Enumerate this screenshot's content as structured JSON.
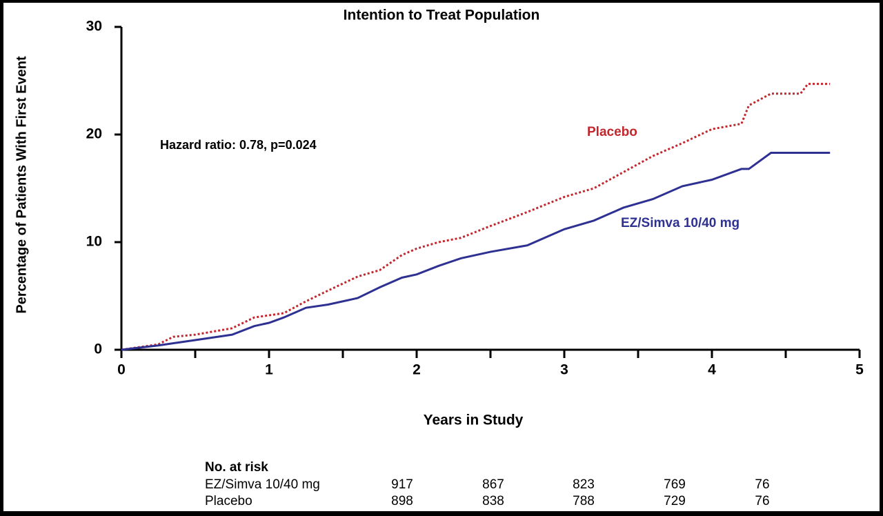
{
  "chart_data": {
    "type": "line",
    "title": "Intention to Treat Population",
    "x_label": "Years in Study",
    "y_label": "Percentage of Patients With First Event",
    "annotations": [
      "Hazard ratio: 0.78, p=0.024"
    ],
    "x": [
      0,
      0.25,
      0.35,
      0.5,
      0.75,
      0.9,
      1.0,
      1.1,
      1.25,
      1.4,
      1.6,
      1.75,
      1.9,
      2.0,
      2.15,
      2.3,
      2.5,
      2.75,
      3.0,
      3.2,
      3.4,
      3.6,
      3.8,
      4.0,
      4.2,
      4.25,
      4.4,
      4.6,
      4.65,
      4.8
    ],
    "series": [
      {
        "name": "Placebo",
        "color": "#c1272d",
        "dashed": true,
        "values": [
          0,
          0.5,
          1.2,
          1.4,
          2.0,
          3.0,
          3.2,
          3.4,
          4.5,
          5.5,
          6.8,
          7.4,
          8.8,
          9.4,
          10.0,
          10.4,
          11.5,
          12.8,
          14.2,
          15.0,
          16.5,
          18.0,
          19.2,
          20.5,
          21.0,
          22.7,
          23.8,
          23.8,
          24.7,
          24.7
        ]
      },
      {
        "name": "EZ/Simva 10/40 mg",
        "color": "#2e3192",
        "dashed": false,
        "values": [
          0,
          0.4,
          0.6,
          0.9,
          1.4,
          2.2,
          2.5,
          3.0,
          3.9,
          4.2,
          4.8,
          5.8,
          6.7,
          7.0,
          7.8,
          8.5,
          9.1,
          9.7,
          11.2,
          12.0,
          13.2,
          14.0,
          15.2,
          15.8,
          16.8,
          16.8,
          18.3,
          18.3,
          18.3,
          18.3
        ]
      }
    ],
    "xlim": [
      0,
      5
    ],
    "xticks": [
      0,
      1,
      2,
      3,
      4,
      5
    ],
    "x_minor_ticks": [
      0.5,
      1.5,
      2.5,
      3.5,
      4.5
    ],
    "ylim": [
      0,
      30
    ],
    "yticks": [
      0,
      10,
      20,
      30
    ],
    "risk_table": {
      "title": "No. at risk",
      "rows": [
        {
          "label": "EZ/Simva 10/40 mg",
          "values": [
            917,
            867,
            823,
            769,
            76
          ]
        },
        {
          "label": "Placebo",
          "values": [
            898,
            838,
            788,
            729,
            76
          ]
        }
      ]
    }
  }
}
